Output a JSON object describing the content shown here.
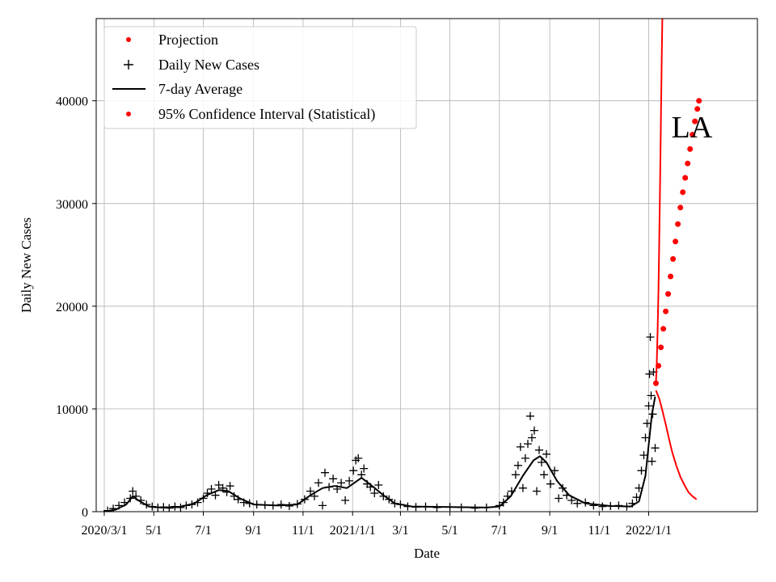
{
  "chart_data": {
    "type": "line",
    "title": "",
    "region_label": "LA",
    "xlabel": "Date",
    "ylabel": "Daily New Cases",
    "x_start": "2020-02-20",
    "x_end": "2022-05-15",
    "ylim": [
      0,
      48000
    ],
    "grid": true,
    "legend_position": "top-left",
    "x_ticks": [
      {
        "date": "2020-03-01",
        "label": "2020/3/1"
      },
      {
        "date": "2020-05-01",
        "label": "5/1"
      },
      {
        "date": "2020-07-01",
        "label": "7/1"
      },
      {
        "date": "2020-09-01",
        "label": "9/1"
      },
      {
        "date": "2020-11-01",
        "label": "11/1"
      },
      {
        "date": "2021-01-01",
        "label": "2021/1/1"
      },
      {
        "date": "2021-03-01",
        "label": "3/1"
      },
      {
        "date": "2021-05-01",
        "label": "5/1"
      },
      {
        "date": "2021-07-01",
        "label": "7/1"
      },
      {
        "date": "2021-09-01",
        "label": "9/1"
      },
      {
        "date": "2021-11-01",
        "label": "11/1"
      },
      {
        "date": "2022-01-01",
        "label": "2022/1/1"
      }
    ],
    "y_ticks": [
      {
        "value": 0,
        "label": "0"
      },
      {
        "value": 10000,
        "label": "10000"
      },
      {
        "value": 20000,
        "label": "20000"
      },
      {
        "value": 30000,
        "label": "30000"
      },
      {
        "value": 40000,
        "label": "40000"
      }
    ],
    "legend": [
      {
        "label": "Projection",
        "marker": "dot",
        "color": "#ff0000"
      },
      {
        "label": "Daily New Cases",
        "marker": "plus",
        "color": "#000000"
      },
      {
        "label": "7-day Average",
        "marker": "line",
        "color": "#000000"
      },
      {
        "label": "95% Confidence Interval (Statistical)",
        "marker": "dot",
        "color": "#ff0000"
      }
    ],
    "series": [
      {
        "name": "7-day Average",
        "style": "line",
        "color": "#000000",
        "points": [
          [
            "2020-03-01",
            0
          ],
          [
            "2020-03-15",
            200
          ],
          [
            "2020-03-28",
            700
          ],
          [
            "2020-04-05",
            1500
          ],
          [
            "2020-04-12",
            1100
          ],
          [
            "2020-04-25",
            500
          ],
          [
            "2020-05-10",
            400
          ],
          [
            "2020-06-01",
            450
          ],
          [
            "2020-06-20",
            800
          ],
          [
            "2020-07-05",
            1600
          ],
          [
            "2020-07-20",
            2100
          ],
          [
            "2020-08-01",
            2000
          ],
          [
            "2020-08-15",
            1300
          ],
          [
            "2020-09-01",
            700
          ],
          [
            "2020-10-01",
            600
          ],
          [
            "2020-10-25",
            700
          ],
          [
            "2020-11-10",
            1600
          ],
          [
            "2020-11-25",
            2300
          ],
          [
            "2020-12-10",
            2500
          ],
          [
            "2020-12-25",
            2300
          ],
          [
            "2021-01-05",
            2900
          ],
          [
            "2021-01-12",
            3300
          ],
          [
            "2021-01-25",
            2500
          ],
          [
            "2021-02-08",
            1600
          ],
          [
            "2021-02-22",
            800
          ],
          [
            "2021-03-15",
            500
          ],
          [
            "2021-05-01",
            450
          ],
          [
            "2021-06-15",
            400
          ],
          [
            "2021-07-01",
            500
          ],
          [
            "2021-07-15",
            1500
          ],
          [
            "2021-07-30",
            3500
          ],
          [
            "2021-08-12",
            5000
          ],
          [
            "2021-08-20",
            5400
          ],
          [
            "2021-08-28",
            4800
          ],
          [
            "2021-09-10",
            3000
          ],
          [
            "2021-09-25",
            1600
          ],
          [
            "2021-10-15",
            800
          ],
          [
            "2021-11-15",
            550
          ],
          [
            "2021-12-10",
            500
          ],
          [
            "2021-12-20",
            1000
          ],
          [
            "2021-12-28",
            3500
          ],
          [
            "2022-01-01",
            6500
          ],
          [
            "2022-01-05",
            9500
          ],
          [
            "2022-01-09",
            11200
          ]
        ]
      },
      {
        "name": "Daily New Cases",
        "style": "plus",
        "color": "#000000",
        "points": [
          [
            "2020-03-05",
            100
          ],
          [
            "2020-03-12",
            300
          ],
          [
            "2020-03-19",
            600
          ],
          [
            "2020-03-26",
            900
          ],
          [
            "2020-04-02",
            1300
          ],
          [
            "2020-04-05",
            2000
          ],
          [
            "2020-04-09",
            1500
          ],
          [
            "2020-04-15",
            1100
          ],
          [
            "2020-04-22",
            700
          ],
          [
            "2020-04-29",
            500
          ],
          [
            "2020-05-06",
            400
          ],
          [
            "2020-05-13",
            450
          ],
          [
            "2020-05-20",
            350
          ],
          [
            "2020-05-27",
            500
          ],
          [
            "2020-06-03",
            400
          ],
          [
            "2020-06-10",
            600
          ],
          [
            "2020-06-17",
            700
          ],
          [
            "2020-06-24",
            900
          ],
          [
            "2020-07-01",
            1300
          ],
          [
            "2020-07-06",
            1800
          ],
          [
            "2020-07-11",
            2200
          ],
          [
            "2020-07-16",
            1600
          ],
          [
            "2020-07-20",
            2600
          ],
          [
            "2020-07-25",
            2300
          ],
          [
            "2020-07-30",
            1900
          ],
          [
            "2020-08-03",
            2500
          ],
          [
            "2020-08-08",
            1500
          ],
          [
            "2020-08-13",
            1200
          ],
          [
            "2020-08-20",
            900
          ],
          [
            "2020-08-27",
            800
          ],
          [
            "2020-09-05",
            700
          ],
          [
            "2020-09-15",
            650
          ],
          [
            "2020-09-25",
            600
          ],
          [
            "2020-10-05",
            700
          ],
          [
            "2020-10-15",
            550
          ],
          [
            "2020-10-25",
            750
          ],
          [
            "2020-11-03",
            1200
          ],
          [
            "2020-11-10",
            2000
          ],
          [
            "2020-11-15",
            1500
          ],
          [
            "2020-11-20",
            2800
          ],
          [
            "2020-11-25",
            600
          ],
          [
            "2020-11-28",
            3800
          ],
          [
            "2020-12-03",
            2400
          ],
          [
            "2020-12-08",
            3200
          ],
          [
            "2020-12-13",
            2200
          ],
          [
            "2020-12-18",
            2800
          ],
          [
            "2020-12-23",
            1100
          ],
          [
            "2020-12-28",
            3000
          ],
          [
            "2021-01-02",
            4000
          ],
          [
            "2021-01-05",
            5000
          ],
          [
            "2021-01-08",
            5200
          ],
          [
            "2021-01-12",
            3600
          ],
          [
            "2021-01-15",
            4200
          ],
          [
            "2021-01-19",
            2700
          ],
          [
            "2021-01-23",
            2400
          ],
          [
            "2021-01-28",
            1800
          ],
          [
            "2021-02-02",
            2600
          ],
          [
            "2021-02-08",
            1500
          ],
          [
            "2021-02-15",
            1200
          ],
          [
            "2021-02-22",
            800
          ],
          [
            "2021-03-01",
            700
          ],
          [
            "2021-03-10",
            500
          ],
          [
            "2021-03-20",
            450
          ],
          [
            "2021-04-01",
            500
          ],
          [
            "2021-04-15",
            400
          ],
          [
            "2021-05-01",
            450
          ],
          [
            "2021-05-15",
            400
          ],
          [
            "2021-06-01",
            350
          ],
          [
            "2021-06-15",
            400
          ],
          [
            "2021-07-01",
            600
          ],
          [
            "2021-07-06",
            900
          ],
          [
            "2021-07-11",
            1500
          ],
          [
            "2021-07-16",
            2000
          ],
          [
            "2021-07-21",
            3600
          ],
          [
            "2021-07-24",
            4500
          ],
          [
            "2021-07-27",
            6300
          ],
          [
            "2021-07-30",
            2300
          ],
          [
            "2021-08-02",
            5200
          ],
          [
            "2021-08-05",
            6600
          ],
          [
            "2021-08-08",
            9300
          ],
          [
            "2021-08-10",
            7200
          ],
          [
            "2021-08-13",
            7900
          ],
          [
            "2021-08-16",
            2000
          ],
          [
            "2021-08-19",
            6000
          ],
          [
            "2021-08-22",
            4800
          ],
          [
            "2021-08-25",
            3600
          ],
          [
            "2021-08-28",
            5600
          ],
          [
            "2021-09-02",
            2700
          ],
          [
            "2021-09-07",
            4000
          ],
          [
            "2021-09-12",
            1300
          ],
          [
            "2021-09-17",
            2300
          ],
          [
            "2021-09-22",
            1600
          ],
          [
            "2021-09-28",
            1100
          ],
          [
            "2021-10-05",
            800
          ],
          [
            "2021-10-15",
            900
          ],
          [
            "2021-10-25",
            600
          ],
          [
            "2021-11-05",
            500
          ],
          [
            "2021-11-15",
            550
          ],
          [
            "2021-11-25",
            600
          ],
          [
            "2021-12-05",
            500
          ],
          [
            "2021-12-12",
            800
          ],
          [
            "2021-12-17",
            1400
          ],
          [
            "2021-12-20",
            2300
          ],
          [
            "2021-12-23",
            4000
          ],
          [
            "2021-12-26",
            5500
          ],
          [
            "2021-12-28",
            7200
          ],
          [
            "2021-12-30",
            8600
          ],
          [
            "2022-01-01",
            10300
          ],
          [
            "2022-01-02",
            13400
          ],
          [
            "2022-01-03",
            17000
          ],
          [
            "2022-01-04",
            11300
          ],
          [
            "2022-01-05",
            4900
          ],
          [
            "2022-01-06",
            9500
          ],
          [
            "2022-01-07",
            13600
          ],
          [
            "2022-01-09",
            6200
          ]
        ]
      },
      {
        "name": "Projection",
        "style": "dot",
        "color": "#ff0000",
        "points": [
          [
            "2022-01-10",
            12500
          ],
          [
            "2022-01-13",
            14200
          ],
          [
            "2022-01-16",
            16000
          ],
          [
            "2022-01-19",
            17800
          ],
          [
            "2022-01-22",
            19500
          ],
          [
            "2022-01-25",
            21200
          ],
          [
            "2022-01-28",
            22900
          ],
          [
            "2022-01-31",
            24600
          ],
          [
            "2022-02-03",
            26300
          ],
          [
            "2022-02-06",
            28000
          ],
          [
            "2022-02-09",
            29600
          ],
          [
            "2022-02-12",
            31100
          ],
          [
            "2022-02-15",
            32500
          ],
          [
            "2022-02-18",
            33900
          ],
          [
            "2022-02-21",
            35300
          ],
          [
            "2022-02-24",
            36700
          ],
          [
            "2022-02-27",
            38000
          ],
          [
            "2022-03-02",
            39200
          ],
          [
            "2022-03-04",
            40000
          ]
        ]
      },
      {
        "name": "95% Confidence Interval (Statistical)",
        "style": "line",
        "color": "#ff0000",
        "points": [
          [
            "2022-01-10",
            11800
          ],
          [
            "2022-01-14",
            11000
          ],
          [
            "2022-01-18",
            9800
          ],
          [
            "2022-01-22",
            8500
          ],
          [
            "2022-01-26",
            7100
          ],
          [
            "2022-01-30",
            5800
          ],
          [
            "2022-02-04",
            4500
          ],
          [
            "2022-02-09",
            3400
          ],
          [
            "2022-02-14",
            2600
          ],
          [
            "2022-02-19",
            1900
          ],
          [
            "2022-02-24",
            1500
          ],
          [
            "2022-03-01",
            1200
          ]
        ]
      },
      {
        "name": "95% Confidence Interval (Statistical)",
        "style": "line",
        "color": "#ff0000",
        "points": [
          [
            "2022-01-10",
            12500
          ],
          [
            "2022-01-11",
            14500
          ],
          [
            "2022-01-12",
            17500
          ],
          [
            "2022-01-13",
            21500
          ],
          [
            "2022-01-14",
            26500
          ],
          [
            "2022-01-15",
            32000
          ],
          [
            "2022-01-16",
            38000
          ],
          [
            "2022-01-17",
            44000
          ],
          [
            "2022-01-18",
            49000
          ]
        ]
      }
    ]
  }
}
